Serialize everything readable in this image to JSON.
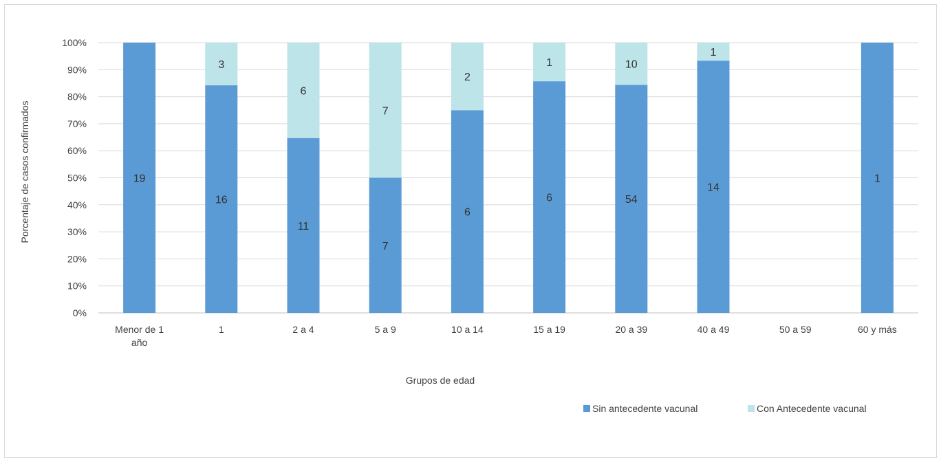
{
  "chart_data": {
    "type": "bar",
    "stacked": true,
    "percent_stacked": true,
    "title": "",
    "xlabel": "Grupos de edad",
    "ylabel": "Porcentaje de casos confirmados",
    "ylim": [
      0,
      100
    ],
    "yticks": [
      "0%",
      "10%",
      "20%",
      "30%",
      "40%",
      "50%",
      "60%",
      "70%",
      "80%",
      "90%",
      "100%"
    ],
    "grid": true,
    "legend_position": "bottom-right",
    "categories": [
      [
        "Menor de 1",
        "año"
      ],
      [
        "1"
      ],
      [
        "2 a 4"
      ],
      [
        "5 a 9"
      ],
      [
        "10 a 14"
      ],
      [
        "15 a 19"
      ],
      [
        "20 a 39"
      ],
      [
        "40 a 49"
      ],
      [
        "50 a 59"
      ],
      [
        "60 y más"
      ]
    ],
    "series": [
      {
        "name": "Sin antecedente vacunal",
        "color": "#5b9bd5",
        "values": [
          19,
          16,
          11,
          7,
          6,
          6,
          54,
          14,
          0,
          1
        ]
      },
      {
        "name": "Con Antecedente vacunal",
        "color": "#bde4e8",
        "values": [
          0,
          3,
          6,
          7,
          2,
          1,
          10,
          1,
          0,
          0
        ]
      }
    ]
  }
}
